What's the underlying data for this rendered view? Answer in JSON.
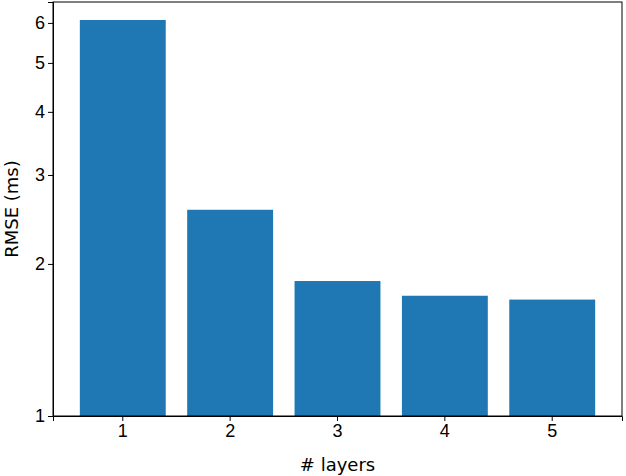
{
  "chart_data": {
    "type": "bar",
    "x_label": "# layers",
    "y_label": "RMSE (ms)",
    "categories": [
      "1",
      "2",
      "3",
      "4",
      "5"
    ],
    "values": [
      6.08,
      2.56,
      1.85,
      1.73,
      1.7
    ],
    "color": "#1f77b4",
    "log": "y",
    "ylim": [
      1,
      6.6
    ],
    "yticks": [
      1,
      2,
      3,
      4,
      5,
      6
    ],
    "grid": false
  }
}
